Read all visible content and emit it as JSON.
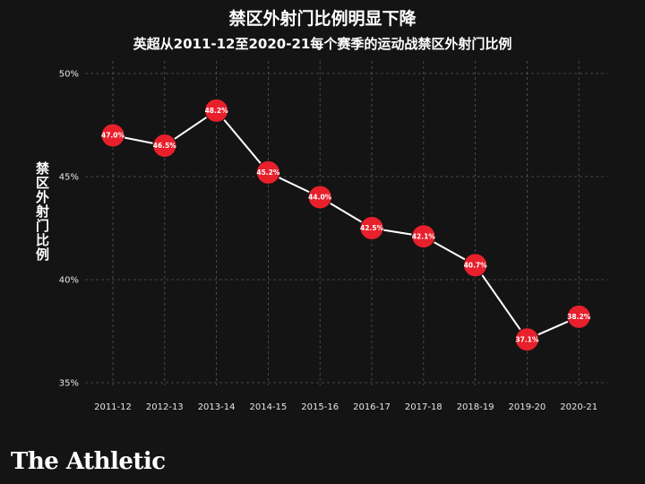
{
  "title": "禁区外射门比例明显下降",
  "subtitle": "英超从2011-12至2020-21每个赛季的运动战禁区外射门比例",
  "logo": "The Athletic",
  "colors": {
    "background": "#141414",
    "marker": "#e8202c",
    "line": "#ffffff",
    "grid": "#555555"
  },
  "chart_data": {
    "type": "line",
    "title": "禁区外射门比例明显下降",
    "subtitle": "英超从2011-12至2020-21每个赛季的运动战禁区外射门比例",
    "xlabel": "",
    "ylabel": "禁区外射门比例",
    "categories": [
      "2011-12",
      "2012-13",
      "2013-14",
      "2014-15",
      "2015-16",
      "2016-17",
      "2017-18",
      "2018-19",
      "2019-20",
      "2020-21"
    ],
    "values": [
      47.0,
      46.5,
      48.2,
      45.2,
      44.0,
      42.5,
      42.1,
      40.7,
      37.1,
      38.2
    ],
    "data_labels": [
      "47.0%",
      "46.5%",
      "48.2%",
      "45.2%",
      "44.0%",
      "42.5%",
      "42.1%",
      "40.7%",
      "37.1%",
      "38.2%"
    ],
    "ylim": [
      34.5,
      51
    ],
    "yticks": [
      35,
      40,
      45,
      50
    ],
    "ytick_labels": [
      "35%",
      "40%",
      "45%",
      "50%"
    ],
    "grid": true,
    "legend": "none"
  }
}
